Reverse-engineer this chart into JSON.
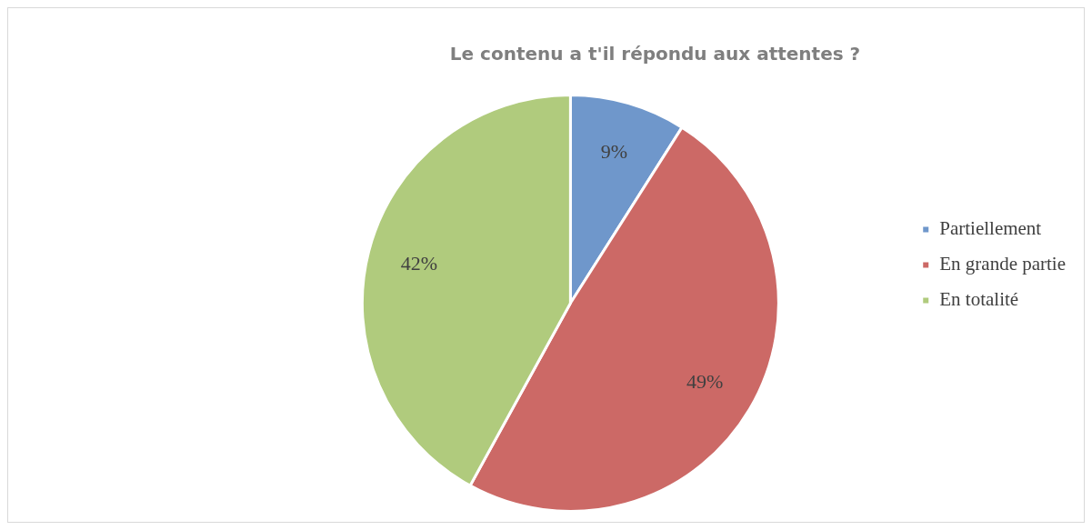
{
  "chart_data": {
    "type": "pie",
    "title": "Le contenu a t'il répondu aux attentes ?",
    "categories": [
      "Partiellement",
      "En grande partie",
      "En totalité"
    ],
    "values": [
      9,
      49,
      42
    ],
    "colors": [
      "#6f97cb",
      "#cc6966",
      "#b0cb7d"
    ],
    "value_labels": [
      "9%",
      "49%",
      "42%"
    ],
    "legend": "right"
  }
}
